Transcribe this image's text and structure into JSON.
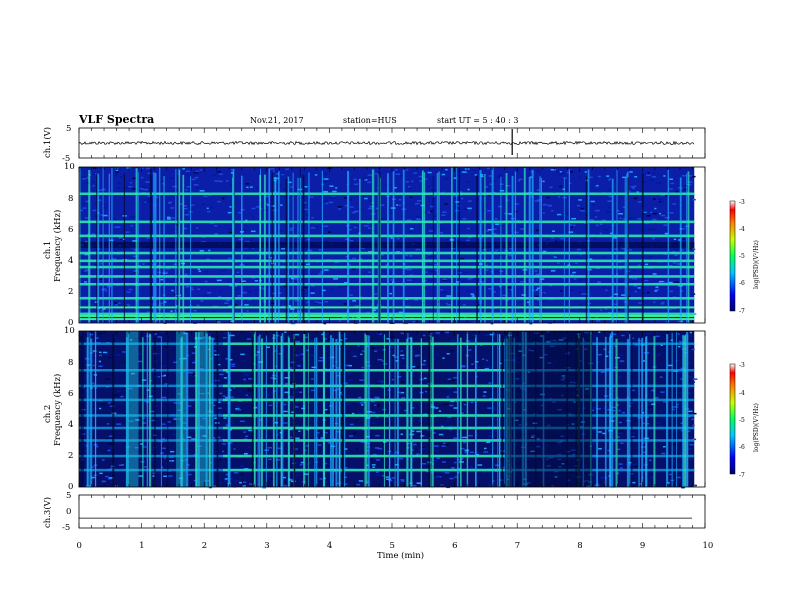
{
  "header": {
    "title": "VLF Spectra",
    "date": "Nov.21, 2017",
    "station": "station=HUS",
    "start": "start  UT =  5 : 40 : 3"
  },
  "chart_data": [
    {
      "type": "line",
      "name": "ch.1 waveform",
      "ylabel": "ch.1(V)",
      "ylim": [
        -5,
        5
      ],
      "yticks": [
        "5",
        "-5"
      ],
      "xlim": [
        0,
        10
      ],
      "baseline": 0,
      "spikes_min": [
        6.92
      ]
    },
    {
      "type": "heatmap",
      "name": "ch.1 spectrogram",
      "ylabel": "ch.1",
      "ylabel2": "Frequency  (kHz)",
      "xlim": [
        0,
        9.83
      ],
      "ylim": [
        0,
        10
      ],
      "yticks": [
        "0",
        "2",
        "4",
        "6",
        "8",
        "10"
      ],
      "colorbar": {
        "label": "log(PSD)(V²/Hz)",
        "range": [
          -7,
          -3
        ],
        "ticks": [
          "-3",
          "-4",
          "-5",
          "-6",
          "-7"
        ]
      },
      "harmonic_lines_khz": [
        0.6,
        1.6,
        2.5,
        3.0,
        3.6,
        4.0,
        4.5,
        5.6,
        6.5,
        8.3
      ],
      "strong_lines_khz": [
        0.25,
        0.45,
        1.0
      ],
      "dark_band_khz": [
        4.8,
        5.2
      ]
    },
    {
      "type": "heatmap",
      "name": "ch.2 spectrogram",
      "ylabel": "ch.2",
      "ylabel2": "Frequency  (kHz)",
      "xlim": [
        0,
        9.83
      ],
      "ylim": [
        0,
        10
      ],
      "yticks": [
        "0",
        "2",
        "4",
        "6",
        "8",
        "10"
      ],
      "colorbar": {
        "label": "log(PSD)(V²/Hz)",
        "range": [
          -7,
          -3
        ],
        "ticks": [
          "-3",
          "-4",
          "-5",
          "-6",
          "-7"
        ]
      },
      "harmonic_lines_khz": [
        1.1,
        2.0,
        3.0,
        3.8,
        4.6,
        5.6,
        6.5,
        7.5,
        9.2
      ],
      "active_interval_min": [
        2.3,
        6.8
      ]
    },
    {
      "type": "line",
      "name": "ch.3 waveform",
      "ylabel": "ch.3(V)",
      "ylim": [
        -5,
        5
      ],
      "yticks": [
        "5",
        "0",
        "-5"
      ],
      "xlim": [
        0,
        10
      ],
      "baseline": -2
    }
  ],
  "xaxis": {
    "label": "Time  (min)",
    "ticks": [
      "0",
      "1",
      "2",
      "3",
      "4",
      "5",
      "6",
      "7",
      "8",
      "9",
      "10"
    ]
  }
}
